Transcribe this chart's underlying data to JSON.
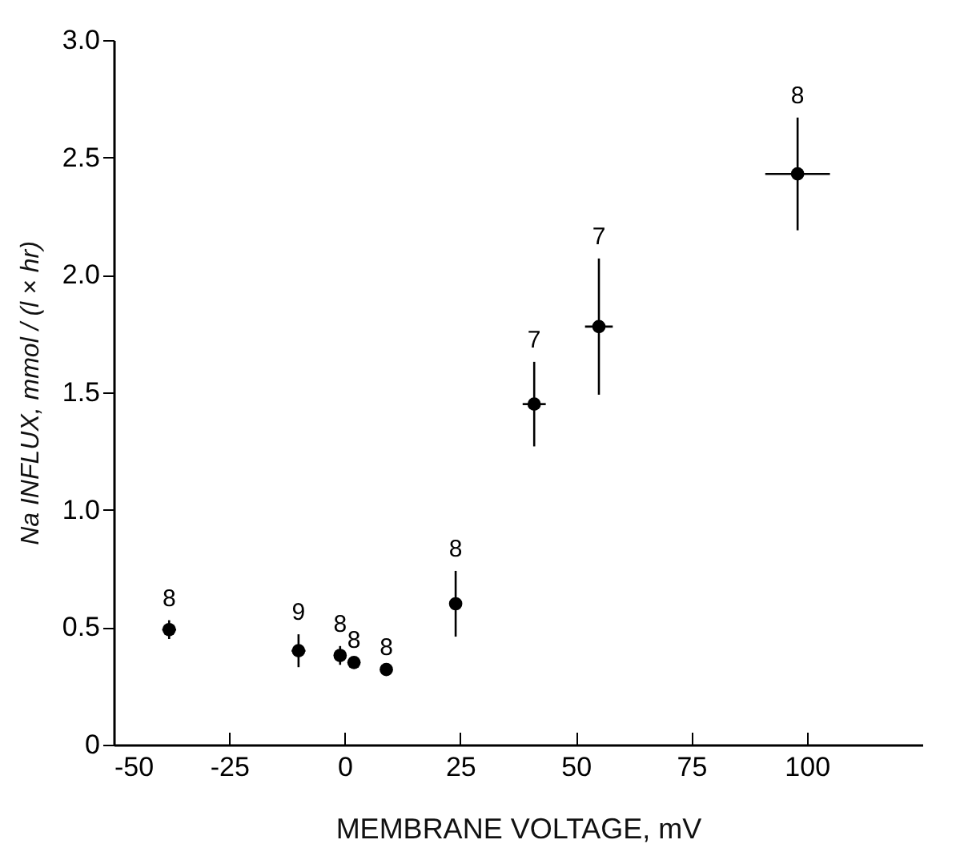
{
  "chart_data": {
    "type": "scatter",
    "xlabel": "MEMBRANE VOLTAGE, mV",
    "ylabel": "Na INFLUX, mmol / (l × hr)",
    "x": [
      -38,
      -10,
      -1,
      2,
      9,
      24,
      41,
      55,
      98
    ],
    "series": [
      {
        "color": "#000000",
        "values": [
          0.49,
          0.4,
          0.38,
          0.35,
          0.32,
          0.6,
          1.45,
          1.78,
          2.43
        ],
        "errors": [
          0.04,
          0.07,
          0.04,
          null,
          null,
          0.14,
          0.18,
          0.29,
          0.24
        ],
        "xerrors": [
          1.5,
          1.5,
          null,
          null,
          null,
          null,
          2.5,
          3,
          7
        ]
      }
    ],
    "marker": "circle",
    "xlim": [
      -50,
      125
    ],
    "xticks": [
      -50,
      -25,
      0,
      25,
      50,
      75,
      100
    ],
    "ylim": [
      0,
      3
    ],
    "yticks": [
      0,
      0.5,
      {
        "value": 1,
        "label": "1.0"
      },
      1.5,
      {
        "value": 2,
        "label": "2.0"
      },
      2.5,
      {
        "value": 3,
        "label": "3.0"
      }
    ],
    "annotations": [
      {
        "text": "8",
        "x": -38,
        "y": 0.53
      },
      {
        "text": "9",
        "x": -10,
        "y": 0.47
      },
      {
        "text": "8",
        "x": -1,
        "y": 0.42
      },
      {
        "text": "8",
        "x": 2,
        "y": 0.35
      },
      {
        "text": "8",
        "x": 9,
        "y": 0.32
      },
      {
        "text": "8",
        "x": 24,
        "y": 0.74
      },
      {
        "text": "7",
        "x": 41,
        "y": 1.63
      },
      {
        "text": "7",
        "x": 55,
        "y": 2.07
      },
      {
        "text": "8",
        "x": 98,
        "y": 2.67
      }
    ]
  }
}
